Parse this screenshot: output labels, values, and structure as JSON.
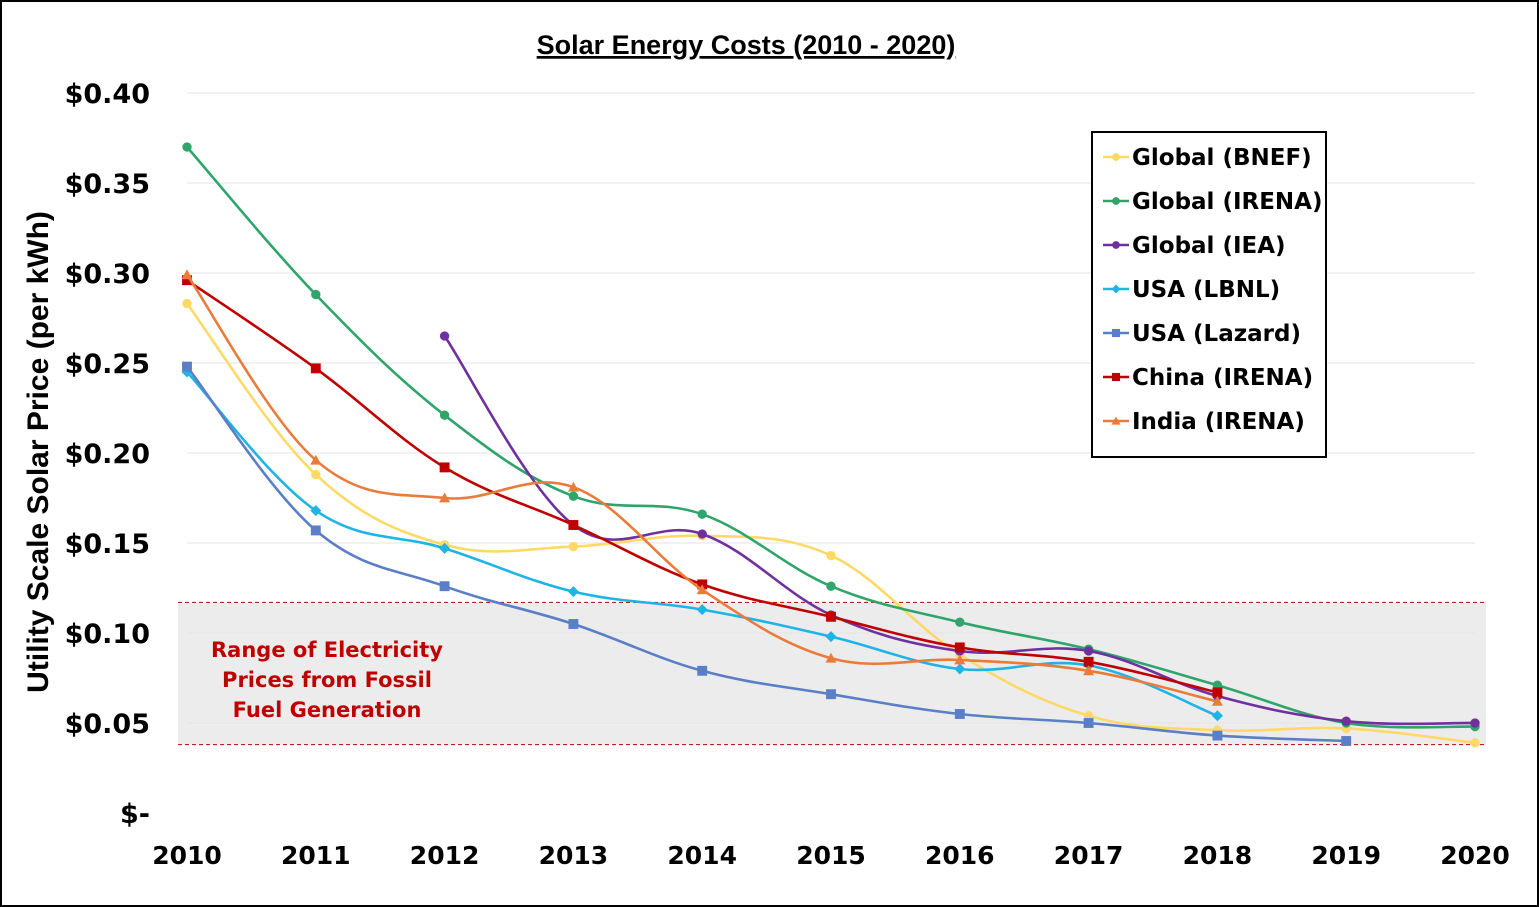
{
  "chart_data": {
    "type": "line",
    "title": "Solar Energy Costs (2010 - 2020)",
    "ylabel": "Utility Scale Solar Price (per kWh)",
    "xlabel": "",
    "x": [
      2010,
      2011,
      2012,
      2013,
      2014,
      2015,
      2016,
      2017,
      2018,
      2019,
      2020
    ],
    "ylim": [
      0,
      0.4
    ],
    "y_ticks": [
      {
        "value": 0.4,
        "label": "$0.40"
      },
      {
        "value": 0.35,
        "label": "$0.35"
      },
      {
        "value": 0.3,
        "label": "$0.30"
      },
      {
        "value": 0.25,
        "label": "$0.25"
      },
      {
        "value": 0.2,
        "label": "$0.20"
      },
      {
        "value": 0.15,
        "label": "$0.15"
      },
      {
        "value": 0.1,
        "label": "$0.10"
      },
      {
        "value": 0.05,
        "label": "$0.05"
      },
      {
        "value": 0.0,
        "label": "$-"
      }
    ],
    "grid": true,
    "legend_position": "top-right",
    "band": {
      "low": 0.038,
      "high": 0.117,
      "lines": [
        "Range of Electricity",
        "Prices from Fossil",
        "Fuel Generation"
      ]
    },
    "series": [
      {
        "name": "Global (BNEF)",
        "color": "#ffd966",
        "marker": "circle",
        "values": [
          0.283,
          0.188,
          0.149,
          0.148,
          0.154,
          0.143,
          0.088,
          0.054,
          0.046,
          0.047,
          0.039
        ]
      },
      {
        "name": "Global (IRENA)",
        "color": "#2ea56a",
        "marker": "circle",
        "values": [
          0.37,
          0.288,
          0.221,
          0.176,
          0.166,
          0.126,
          0.106,
          0.091,
          0.071,
          0.05,
          0.048
        ]
      },
      {
        "name": "Global (IEA)",
        "color": "#7030a0",
        "marker": "circle",
        "values": [
          null,
          null,
          0.265,
          0.16,
          0.155,
          0.11,
          0.09,
          0.09,
          0.065,
          0.051,
          0.05
        ]
      },
      {
        "name": "USA (LBNL)",
        "color": "#1fb4e6",
        "marker": "diamond",
        "values": [
          0.245,
          0.168,
          0.147,
          0.123,
          0.113,
          0.098,
          0.08,
          0.082,
          0.054,
          null,
          null
        ]
      },
      {
        "name": "USA (Lazard)",
        "color": "#5b7fc7",
        "marker": "square",
        "values": [
          0.248,
          0.157,
          0.126,
          0.105,
          0.079,
          0.066,
          0.055,
          0.05,
          0.043,
          0.04,
          null
        ]
      },
      {
        "name": "China (IRENA)",
        "color": "#c00000",
        "marker": "square",
        "values": [
          0.296,
          0.247,
          0.192,
          0.16,
          0.127,
          0.109,
          0.092,
          0.084,
          0.067,
          null,
          null
        ]
      },
      {
        "name": "India (IRENA)",
        "color": "#e97c3a",
        "marker": "triangle",
        "values": [
          0.299,
          0.196,
          0.175,
          0.181,
          0.124,
          0.086,
          0.085,
          0.079,
          0.062,
          null,
          null
        ]
      }
    ]
  }
}
